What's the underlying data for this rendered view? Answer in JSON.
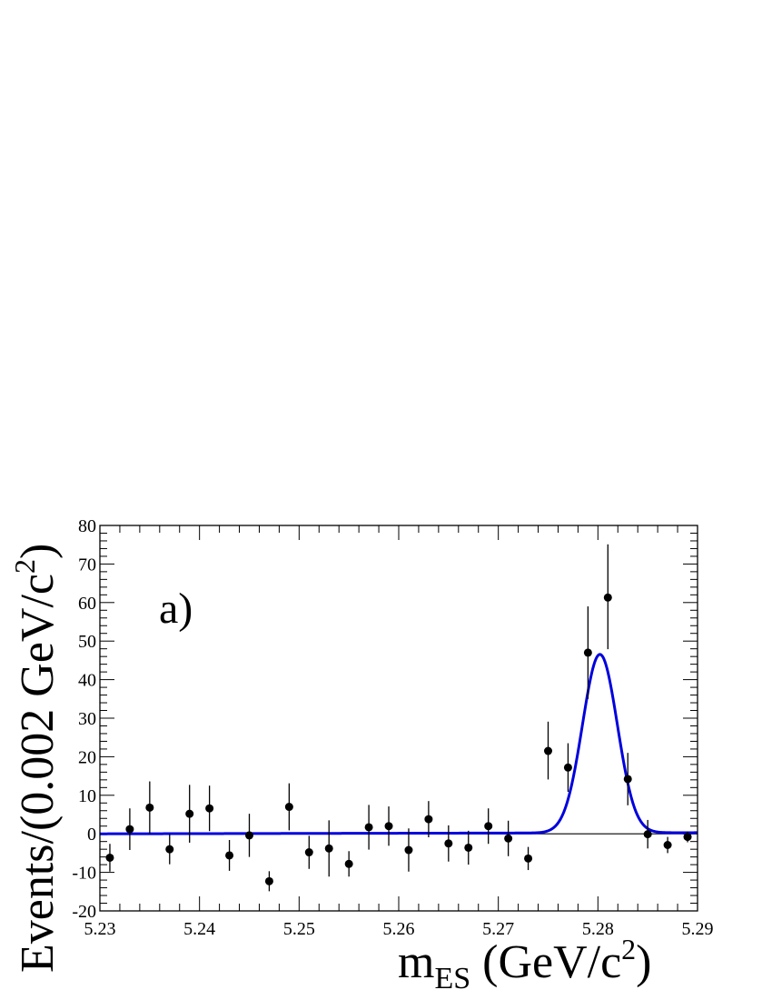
{
  "chart_data": {
    "type": "scatter",
    "panel_label": "a)",
    "xlabel": {
      "main": "m",
      "sub": "ES",
      "rest": " (GeV/c",
      "sup": "2",
      "close": ")"
    },
    "ylabel": {
      "main": "Events/(0.002 GeV/c",
      "sup": "2",
      "close": ")"
    },
    "xlim": [
      5.23,
      5.29
    ],
    "ylim": [
      -20,
      80
    ],
    "x_ticks": [
      "5.23",
      "5.24",
      "5.25",
      "5.26",
      "5.27",
      "5.28",
      "5.29"
    ],
    "y_ticks": [
      "-20",
      "-10",
      "0",
      "10",
      "20",
      "30",
      "40",
      "50",
      "60",
      "70",
      "80"
    ],
    "zero_line": true,
    "data_points": {
      "x": [
        5.231,
        5.233,
        5.235,
        5.237,
        5.239,
        5.241,
        5.243,
        5.245,
        5.247,
        5.249,
        5.251,
        5.253,
        5.255,
        5.257,
        5.259,
        5.261,
        5.263,
        5.265,
        5.267,
        5.269,
        5.271,
        5.273,
        5.275,
        5.277,
        5.279,
        5.281,
        5.283,
        5.285,
        5.287,
        5.289
      ],
      "y": [
        -6.2,
        1.2,
        6.8,
        -4.0,
        5.2,
        6.6,
        -5.6,
        -0.4,
        -12.3,
        7.0,
        -4.8,
        -3.8,
        -7.8,
        1.7,
        2.0,
        -4.2,
        3.8,
        -2.5,
        -3.6,
        2.0,
        -1.2,
        -6.4,
        21.5,
        17.2,
        47.0,
        61.3,
        14.2,
        -0.1,
        -2.9,
        -0.8
      ],
      "err_low": [
        3.6,
        5.4,
        6.8,
        3.9,
        7.5,
        5.9,
        4.0,
        5.6,
        2.6,
        6.1,
        4.3,
        7.3,
        3.3,
        5.8,
        5.1,
        5.6,
        4.7,
        4.7,
        4.4,
        4.6,
        4.6,
        3.0,
        7.4,
        6.3,
        12.0,
        13.4,
        6.8,
        3.7,
        2.1,
        1.4
      ],
      "err_high": [
        3.6,
        5.4,
        6.8,
        3.9,
        7.5,
        5.9,
        4.0,
        5.6,
        2.6,
        6.1,
        4.3,
        7.3,
        3.3,
        5.8,
        5.1,
        5.6,
        4.7,
        4.7,
        4.4,
        4.6,
        4.6,
        3.0,
        7.6,
        6.3,
        12.0,
        13.8,
        6.8,
        3.7,
        2.1,
        1.4
      ]
    },
    "fit_curve": {
      "color": "#0000dd",
      "baseline": 0.0,
      "slope_per_gev": 5.0,
      "peak_mean": 5.2802,
      "peak_sigma": 0.00175,
      "peak_amplitude": 46.3
    },
    "colors": {
      "points": "#000000",
      "frame": "#000000"
    }
  }
}
